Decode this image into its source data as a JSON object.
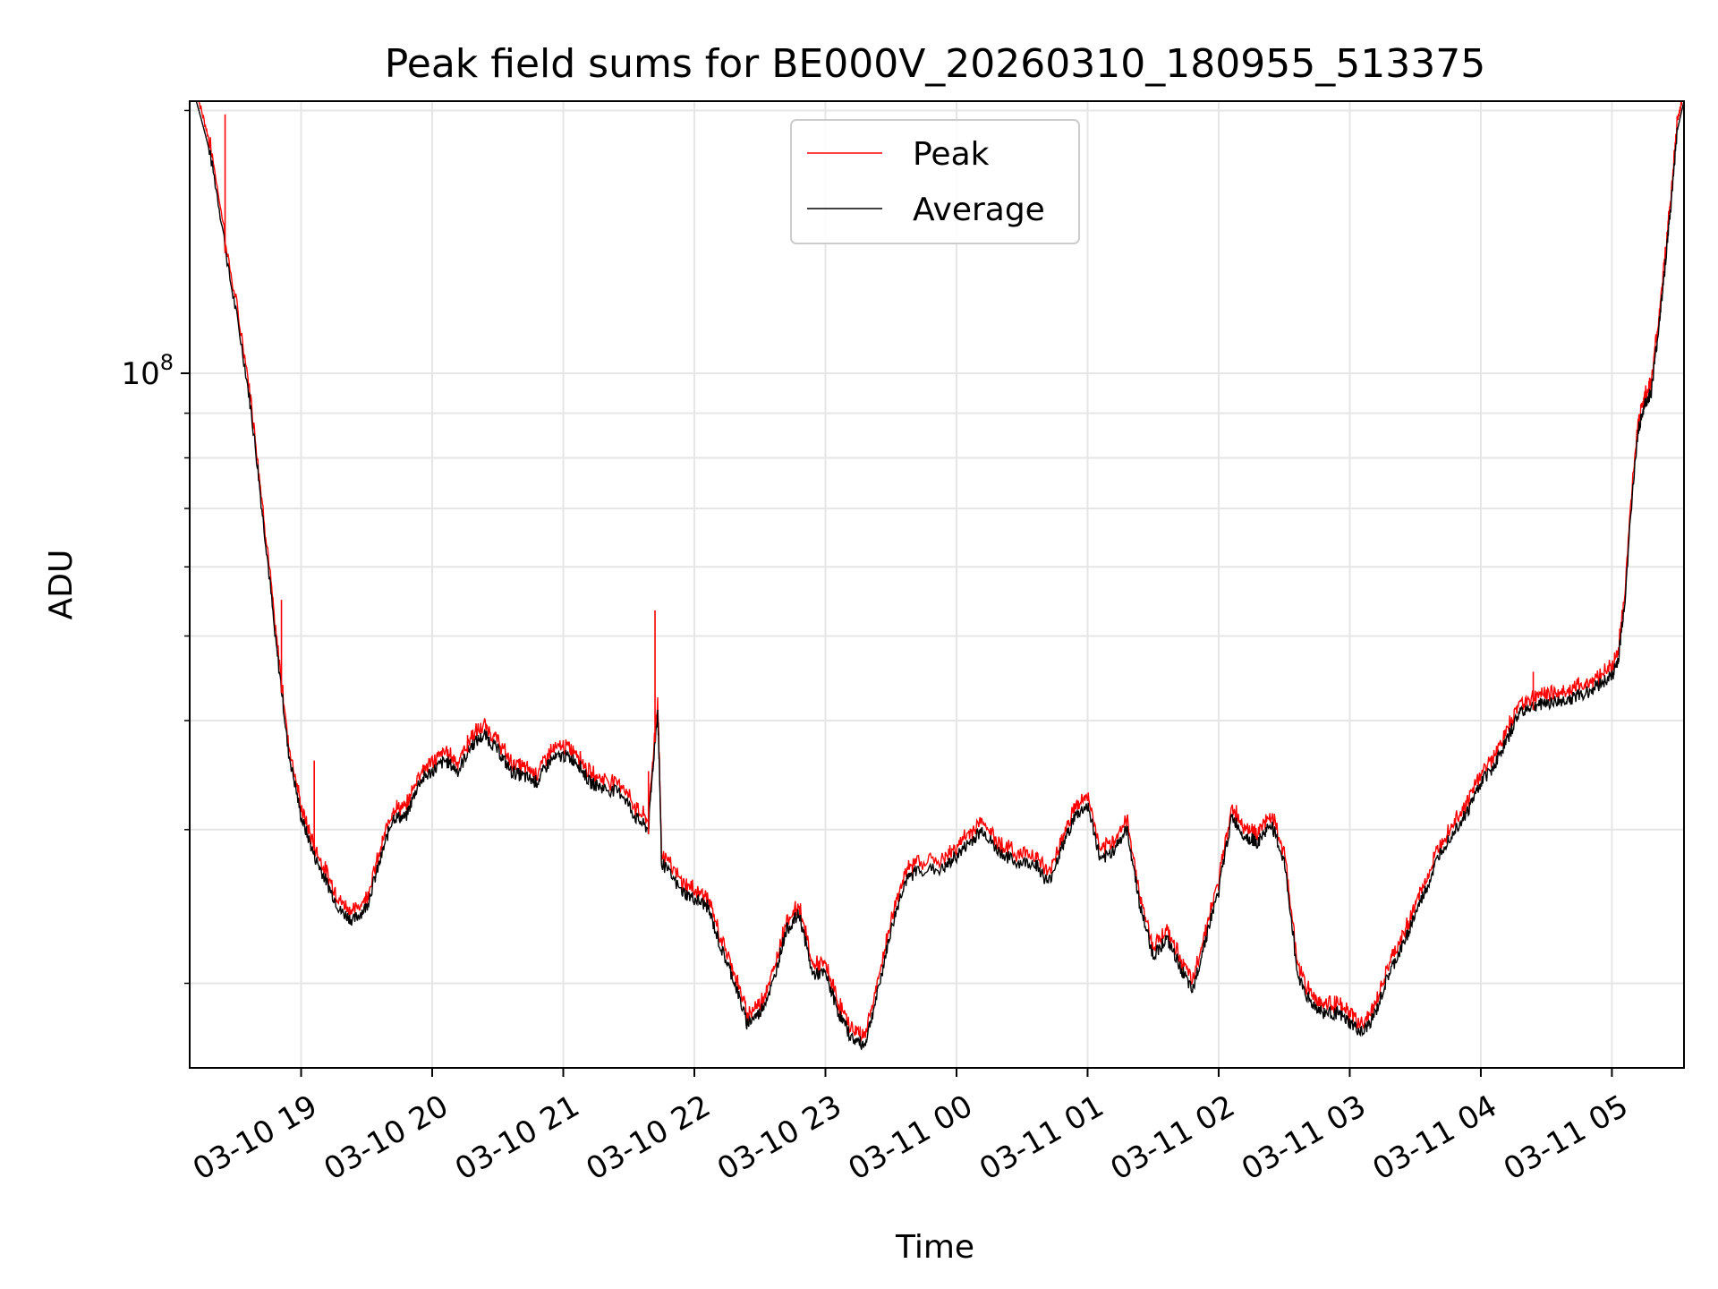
{
  "chart_data": {
    "type": "line",
    "title": "Peak field sums for BE000V_20260310_180955_513375",
    "xlabel": "Time",
    "ylabel": "ADU",
    "yscale": "log",
    "ylim": [
      16000000,
      205000000
    ],
    "y_major_tick": {
      "value": 100000000,
      "base": "10",
      "exponent": "8"
    },
    "y_minor_ticks": [
      20000000,
      30000000,
      40000000,
      50000000,
      60000000,
      70000000,
      80000000,
      90000000,
      200000000
    ],
    "xlim_hours": [
      18.15,
      5.55
    ],
    "x_tick_labels": [
      "03-10 19",
      "03-10 20",
      "03-10 21",
      "03-10 22",
      "03-10 23",
      "03-11 00",
      "03-11 01",
      "03-11 02",
      "03-11 03",
      "03-11 04",
      "03-11 05"
    ],
    "x_tick_hours": [
      19,
      20,
      21,
      22,
      23,
      0,
      1,
      2,
      3,
      4,
      5
    ],
    "grid": true,
    "legend": {
      "position": "top-center",
      "entries": [
        "Peak",
        "Average"
      ]
    },
    "series": [
      {
        "name": "Peak",
        "color": "#ff0000"
      },
      {
        "name": "Average",
        "color": "#000000"
      }
    ],
    "average_points": [
      [
        18.2,
        205
      ],
      [
        18.3,
        180
      ],
      [
        18.45,
        130
      ],
      [
        18.6,
        95
      ],
      [
        18.7,
        70
      ],
      [
        18.8,
        50
      ],
      [
        18.9,
        37
      ],
      [
        19.0,
        31
      ],
      [
        19.1,
        28
      ],
      [
        19.2,
        26
      ],
      [
        19.3,
        24.2
      ],
      [
        19.4,
        23.6
      ],
      [
        19.5,
        24.5
      ],
      [
        19.6,
        27.5
      ],
      [
        19.7,
        31
      ],
      [
        19.8,
        31
      ],
      [
        19.9,
        34
      ],
      [
        20.0,
        35
      ],
      [
        20.1,
        36
      ],
      [
        20.2,
        35
      ],
      [
        20.3,
        37.5
      ],
      [
        20.4,
        38.5
      ],
      [
        20.5,
        37
      ],
      [
        20.6,
        35
      ],
      [
        20.7,
        34.5
      ],
      [
        20.8,
        34
      ],
      [
        20.9,
        36
      ],
      [
        21.0,
        36.5
      ],
      [
        21.1,
        36
      ],
      [
        21.2,
        34
      ],
      [
        21.3,
        33.5
      ],
      [
        21.45,
        33
      ],
      [
        21.55,
        31
      ],
      [
        21.65,
        30
      ],
      [
        21.72,
        41
      ],
      [
        21.75,
        27.5
      ],
      [
        21.9,
        25.5
      ],
      [
        22.0,
        25
      ],
      [
        22.1,
        24.5
      ],
      [
        22.2,
        22
      ],
      [
        22.3,
        20.2
      ],
      [
        22.4,
        18
      ],
      [
        22.5,
        18.5
      ],
      [
        22.6,
        20
      ],
      [
        22.7,
        23
      ],
      [
        22.8,
        24
      ],
      [
        22.9,
        20.5
      ],
      [
        23.0,
        20.5
      ],
      [
        23.1,
        18.5
      ],
      [
        23.2,
        17.3
      ],
      [
        23.3,
        17
      ],
      [
        23.4,
        19.5
      ],
      [
        23.5,
        23
      ],
      [
        23.6,
        26
      ],
      [
        23.7,
        27
      ],
      [
        23.9,
        27
      ],
      [
        24.0,
        28
      ],
      [
        24.1,
        29
      ],
      [
        24.2,
        30
      ],
      [
        24.3,
        28.5
      ],
      [
        24.45,
        27.5
      ],
      [
        24.6,
        27.5
      ],
      [
        24.7,
        26
      ],
      [
        24.8,
        28.5
      ],
      [
        24.9,
        31
      ],
      [
        25.0,
        32
      ],
      [
        25.1,
        27.5
      ],
      [
        25.2,
        28.5
      ],
      [
        25.3,
        30
      ],
      [
        25.4,
        24.5
      ],
      [
        25.5,
        21.5
      ],
      [
        25.6,
        22.5
      ],
      [
        25.7,
        21
      ],
      [
        25.8,
        19.5
      ],
      [
        25.9,
        22.5
      ],
      [
        26.0,
        25.5
      ],
      [
        26.1,
        31
      ],
      [
        26.2,
        29.5
      ],
      [
        26.3,
        29
      ],
      [
        26.4,
        30.5
      ],
      [
        26.5,
        27.5
      ],
      [
        26.6,
        20.5
      ],
      [
        26.7,
        19
      ],
      [
        26.8,
        18.5
      ],
      [
        26.9,
        18.5
      ],
      [
        27.0,
        18
      ],
      [
        27.1,
        17.5
      ],
      [
        27.2,
        18.5
      ],
      [
        27.3,
        20.5
      ],
      [
        27.4,
        22
      ],
      [
        27.5,
        24
      ],
      [
        27.6,
        26
      ],
      [
        27.7,
        28.5
      ],
      [
        27.8,
        30
      ],
      [
        27.9,
        31.5
      ],
      [
        28.0,
        34
      ],
      [
        28.1,
        35.5
      ],
      [
        28.2,
        38
      ],
      [
        28.3,
        41
      ],
      [
        28.4,
        41.5
      ],
      [
        28.5,
        42
      ],
      [
        28.6,
        42
      ],
      [
        28.7,
        42.5
      ],
      [
        28.8,
        43
      ],
      [
        28.9,
        44
      ],
      [
        29.0,
        45
      ],
      [
        29.05,
        47
      ],
      [
        29.1,
        55
      ],
      [
        29.2,
        86
      ],
      [
        29.25,
        92
      ],
      [
        29.3,
        95
      ],
      [
        29.35,
        110
      ],
      [
        29.4,
        130
      ],
      [
        29.45,
        155
      ],
      [
        29.5,
        190
      ],
      [
        29.55,
        205
      ]
    ],
    "peak_spikes": [
      {
        "time": 18.42,
        "value": 198
      },
      {
        "time": 18.85,
        "value": 55
      },
      {
        "time": 19.1,
        "value": 36
      },
      {
        "time": 20.27,
        "value": 38.5
      },
      {
        "time": 21.65,
        "value": 35
      },
      {
        "time": 21.7,
        "value": 53.5
      },
      {
        "time": 28.4,
        "value": 45.5
      }
    ]
  }
}
